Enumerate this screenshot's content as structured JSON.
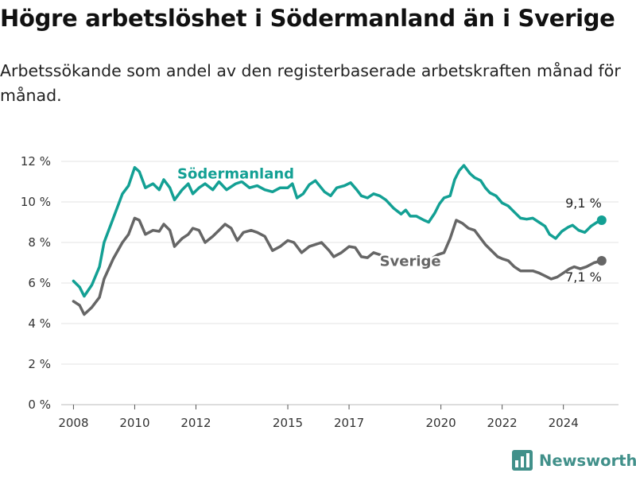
{
  "header": {
    "title": "Högre arbetslöshet i Södermanland än i Sverige",
    "subtitle": "Arbetssökande som andel av den registerbaserade arbetskraften månad för månad."
  },
  "brand": {
    "name": "Newsworthy",
    "color": "#41908a",
    "icon": "bar-chart-logo-icon"
  },
  "chart_data": {
    "type": "line",
    "ylim": [
      0,
      12
    ],
    "xlim": [
      2007.6,
      2025.8
    ],
    "yticks": [
      0,
      2,
      4,
      6,
      8,
      10,
      12
    ],
    "ytick_labels": [
      "0 %",
      "2 %",
      "4 %",
      "6 %",
      "8 %",
      "10 %",
      "12 %"
    ],
    "xticks": [
      2008,
      2010,
      2012,
      2015,
      2017,
      2020,
      2022,
      2024
    ],
    "xtick_labels": [
      "2008",
      "2010",
      "2012",
      "2015",
      "2017",
      "2020",
      "2022",
      "2024"
    ],
    "grid": "horizontal",
    "series": [
      {
        "name": "Södermanland",
        "color": "#13a094",
        "end_label": "9,1 %",
        "points": [
          [
            2008.0,
            6.1
          ],
          [
            2008.2,
            5.8
          ],
          [
            2008.35,
            5.35
          ],
          [
            2008.6,
            5.9
          ],
          [
            2008.85,
            6.8
          ],
          [
            2009.0,
            8.0
          ],
          [
            2009.3,
            9.2
          ],
          [
            2009.6,
            10.4
          ],
          [
            2009.8,
            10.8
          ],
          [
            2010.0,
            11.7
          ],
          [
            2010.15,
            11.5
          ],
          [
            2010.35,
            10.7
          ],
          [
            2010.6,
            10.9
          ],
          [
            2010.8,
            10.6
          ],
          [
            2010.95,
            11.1
          ],
          [
            2011.15,
            10.7
          ],
          [
            2011.3,
            10.1
          ],
          [
            2011.55,
            10.6
          ],
          [
            2011.75,
            10.9
          ],
          [
            2011.9,
            10.4
          ],
          [
            2012.1,
            10.7
          ],
          [
            2012.3,
            10.9
          ],
          [
            2012.55,
            10.6
          ],
          [
            2012.75,
            11.0
          ],
          [
            2013.0,
            10.6
          ],
          [
            2013.3,
            10.9
          ],
          [
            2013.5,
            11.0
          ],
          [
            2013.75,
            10.7
          ],
          [
            2014.0,
            10.8
          ],
          [
            2014.25,
            10.6
          ],
          [
            2014.5,
            10.5
          ],
          [
            2014.75,
            10.7
          ],
          [
            2015.0,
            10.7
          ],
          [
            2015.15,
            10.9
          ],
          [
            2015.3,
            10.2
          ],
          [
            2015.5,
            10.4
          ],
          [
            2015.7,
            10.85
          ],
          [
            2015.9,
            11.05
          ],
          [
            2016.2,
            10.5
          ],
          [
            2016.4,
            10.3
          ],
          [
            2016.6,
            10.7
          ],
          [
            2016.85,
            10.8
          ],
          [
            2017.05,
            10.95
          ],
          [
            2017.25,
            10.6
          ],
          [
            2017.4,
            10.3
          ],
          [
            2017.6,
            10.2
          ],
          [
            2017.8,
            10.4
          ],
          [
            2018.0,
            10.3
          ],
          [
            2018.2,
            10.1
          ],
          [
            2018.45,
            9.7
          ],
          [
            2018.7,
            9.4
          ],
          [
            2018.85,
            9.6
          ],
          [
            2019.0,
            9.3
          ],
          [
            2019.2,
            9.3
          ],
          [
            2019.45,
            9.1
          ],
          [
            2019.6,
            9.0
          ],
          [
            2019.8,
            9.45
          ],
          [
            2019.95,
            9.9
          ],
          [
            2020.1,
            10.2
          ],
          [
            2020.3,
            10.3
          ],
          [
            2020.45,
            11.1
          ],
          [
            2020.6,
            11.55
          ],
          [
            2020.75,
            11.8
          ],
          [
            2020.95,
            11.4
          ],
          [
            2021.1,
            11.2
          ],
          [
            2021.3,
            11.05
          ],
          [
            2021.45,
            10.7
          ],
          [
            2021.6,
            10.45
          ],
          [
            2021.8,
            10.3
          ],
          [
            2022.0,
            9.95
          ],
          [
            2022.2,
            9.8
          ],
          [
            2022.4,
            9.5
          ],
          [
            2022.6,
            9.2
          ],
          [
            2022.8,
            9.15
          ],
          [
            2023.0,
            9.2
          ],
          [
            2023.2,
            9.0
          ],
          [
            2023.4,
            8.8
          ],
          [
            2023.55,
            8.4
          ],
          [
            2023.75,
            8.2
          ],
          [
            2023.95,
            8.55
          ],
          [
            2024.15,
            8.75
          ],
          [
            2024.3,
            8.85
          ],
          [
            2024.5,
            8.6
          ],
          [
            2024.7,
            8.5
          ],
          [
            2024.9,
            8.8
          ],
          [
            2025.1,
            9.0
          ],
          [
            2025.25,
            9.1
          ]
        ],
        "label_at": [
          2013.3,
          11.15
        ]
      },
      {
        "name": "Sverige",
        "color": "#666666",
        "end_label": "7,1 %",
        "points": [
          [
            2008.0,
            5.1
          ],
          [
            2008.2,
            4.9
          ],
          [
            2008.35,
            4.45
          ],
          [
            2008.6,
            4.8
          ],
          [
            2008.85,
            5.3
          ],
          [
            2009.0,
            6.2
          ],
          [
            2009.3,
            7.2
          ],
          [
            2009.6,
            8.0
          ],
          [
            2009.8,
            8.4
          ],
          [
            2010.0,
            9.2
          ],
          [
            2010.15,
            9.1
          ],
          [
            2010.35,
            8.4
          ],
          [
            2010.6,
            8.6
          ],
          [
            2010.8,
            8.55
          ],
          [
            2010.95,
            8.9
          ],
          [
            2011.15,
            8.6
          ],
          [
            2011.3,
            7.8
          ],
          [
            2011.55,
            8.2
          ],
          [
            2011.75,
            8.4
          ],
          [
            2011.9,
            8.7
          ],
          [
            2012.1,
            8.6
          ],
          [
            2012.3,
            8.0
          ],
          [
            2012.55,
            8.3
          ],
          [
            2012.75,
            8.6
          ],
          [
            2012.95,
            8.9
          ],
          [
            2013.15,
            8.7
          ],
          [
            2013.35,
            8.1
          ],
          [
            2013.55,
            8.5
          ],
          [
            2013.8,
            8.6
          ],
          [
            2014.0,
            8.5
          ],
          [
            2014.25,
            8.3
          ],
          [
            2014.5,
            7.6
          ],
          [
            2014.75,
            7.8
          ],
          [
            2015.0,
            8.1
          ],
          [
            2015.2,
            8.0
          ],
          [
            2015.45,
            7.5
          ],
          [
            2015.7,
            7.8
          ],
          [
            2015.9,
            7.9
          ],
          [
            2016.1,
            8.0
          ],
          [
            2016.35,
            7.6
          ],
          [
            2016.5,
            7.3
          ],
          [
            2016.75,
            7.5
          ],
          [
            2017.0,
            7.8
          ],
          [
            2017.2,
            7.75
          ],
          [
            2017.4,
            7.3
          ],
          [
            2017.6,
            7.25
          ],
          [
            2017.8,
            7.5
          ],
          [
            2018.0,
            7.4
          ],
          [
            2018.2,
            7.2
          ],
          [
            2018.45,
            7.2
          ],
          [
            2018.7,
            7.0
          ],
          [
            2019.0,
            7.1
          ],
          [
            2019.25,
            7.1
          ],
          [
            2019.5,
            6.9
          ],
          [
            2019.7,
            7.2
          ],
          [
            2019.9,
            7.4
          ],
          [
            2020.1,
            7.5
          ],
          [
            2020.3,
            8.2
          ],
          [
            2020.5,
            9.1
          ],
          [
            2020.7,
            8.95
          ],
          [
            2020.9,
            8.7
          ],
          [
            2021.1,
            8.6
          ],
          [
            2021.3,
            8.2
          ],
          [
            2021.45,
            7.9
          ],
          [
            2021.65,
            7.6
          ],
          [
            2021.85,
            7.3
          ],
          [
            2022.0,
            7.2
          ],
          [
            2022.2,
            7.1
          ],
          [
            2022.4,
            6.8
          ],
          [
            2022.6,
            6.6
          ],
          [
            2022.8,
            6.6
          ],
          [
            2023.0,
            6.6
          ],
          [
            2023.2,
            6.5
          ],
          [
            2023.4,
            6.35
          ],
          [
            2023.6,
            6.2
          ],
          [
            2023.8,
            6.3
          ],
          [
            2024.0,
            6.5
          ],
          [
            2024.2,
            6.7
          ],
          [
            2024.35,
            6.8
          ],
          [
            2024.55,
            6.7
          ],
          [
            2024.75,
            6.8
          ],
          [
            2025.0,
            7.0
          ],
          [
            2025.25,
            7.1
          ]
        ],
        "label_at": [
          2019.0,
          6.85
        ]
      }
    ]
  }
}
